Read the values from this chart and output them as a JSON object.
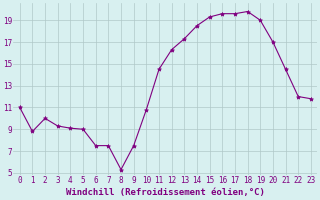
{
  "x": [
    0,
    1,
    2,
    3,
    4,
    5,
    6,
    7,
    8,
    9,
    10,
    11,
    12,
    13,
    14,
    15,
    16,
    17,
    18,
    19,
    20,
    21,
    22,
    23
  ],
  "y": [
    11,
    8.8,
    10,
    9.3,
    9.1,
    9.0,
    7.5,
    7.5,
    5.3,
    7.5,
    10.8,
    14.5,
    16.3,
    17.3,
    18.5,
    19.3,
    19.6,
    19.6,
    19.8,
    19.0,
    17.0,
    14.5,
    12.0,
    11.8
  ],
  "line_color": "#800080",
  "marker": "*",
  "marker_size": 3,
  "bg_color": "#d8f0f0",
  "grid_color": "#b0c8c8",
  "xlabel": "Windchill (Refroidissement éolien,°C)",
  "xlim": [
    -0.5,
    23.5
  ],
  "ylim": [
    4.8,
    20.6
  ],
  "yticks": [
    5,
    7,
    9,
    11,
    13,
    15,
    17,
    19
  ],
  "xticks": [
    0,
    1,
    2,
    3,
    4,
    5,
    6,
    7,
    8,
    9,
    10,
    11,
    12,
    13,
    14,
    15,
    16,
    17,
    18,
    19,
    20,
    21,
    22,
    23
  ],
  "tick_color": "#800080",
  "label_fontsize": 6.5,
  "tick_fontsize": 5.5,
  "line_width": 0.8
}
